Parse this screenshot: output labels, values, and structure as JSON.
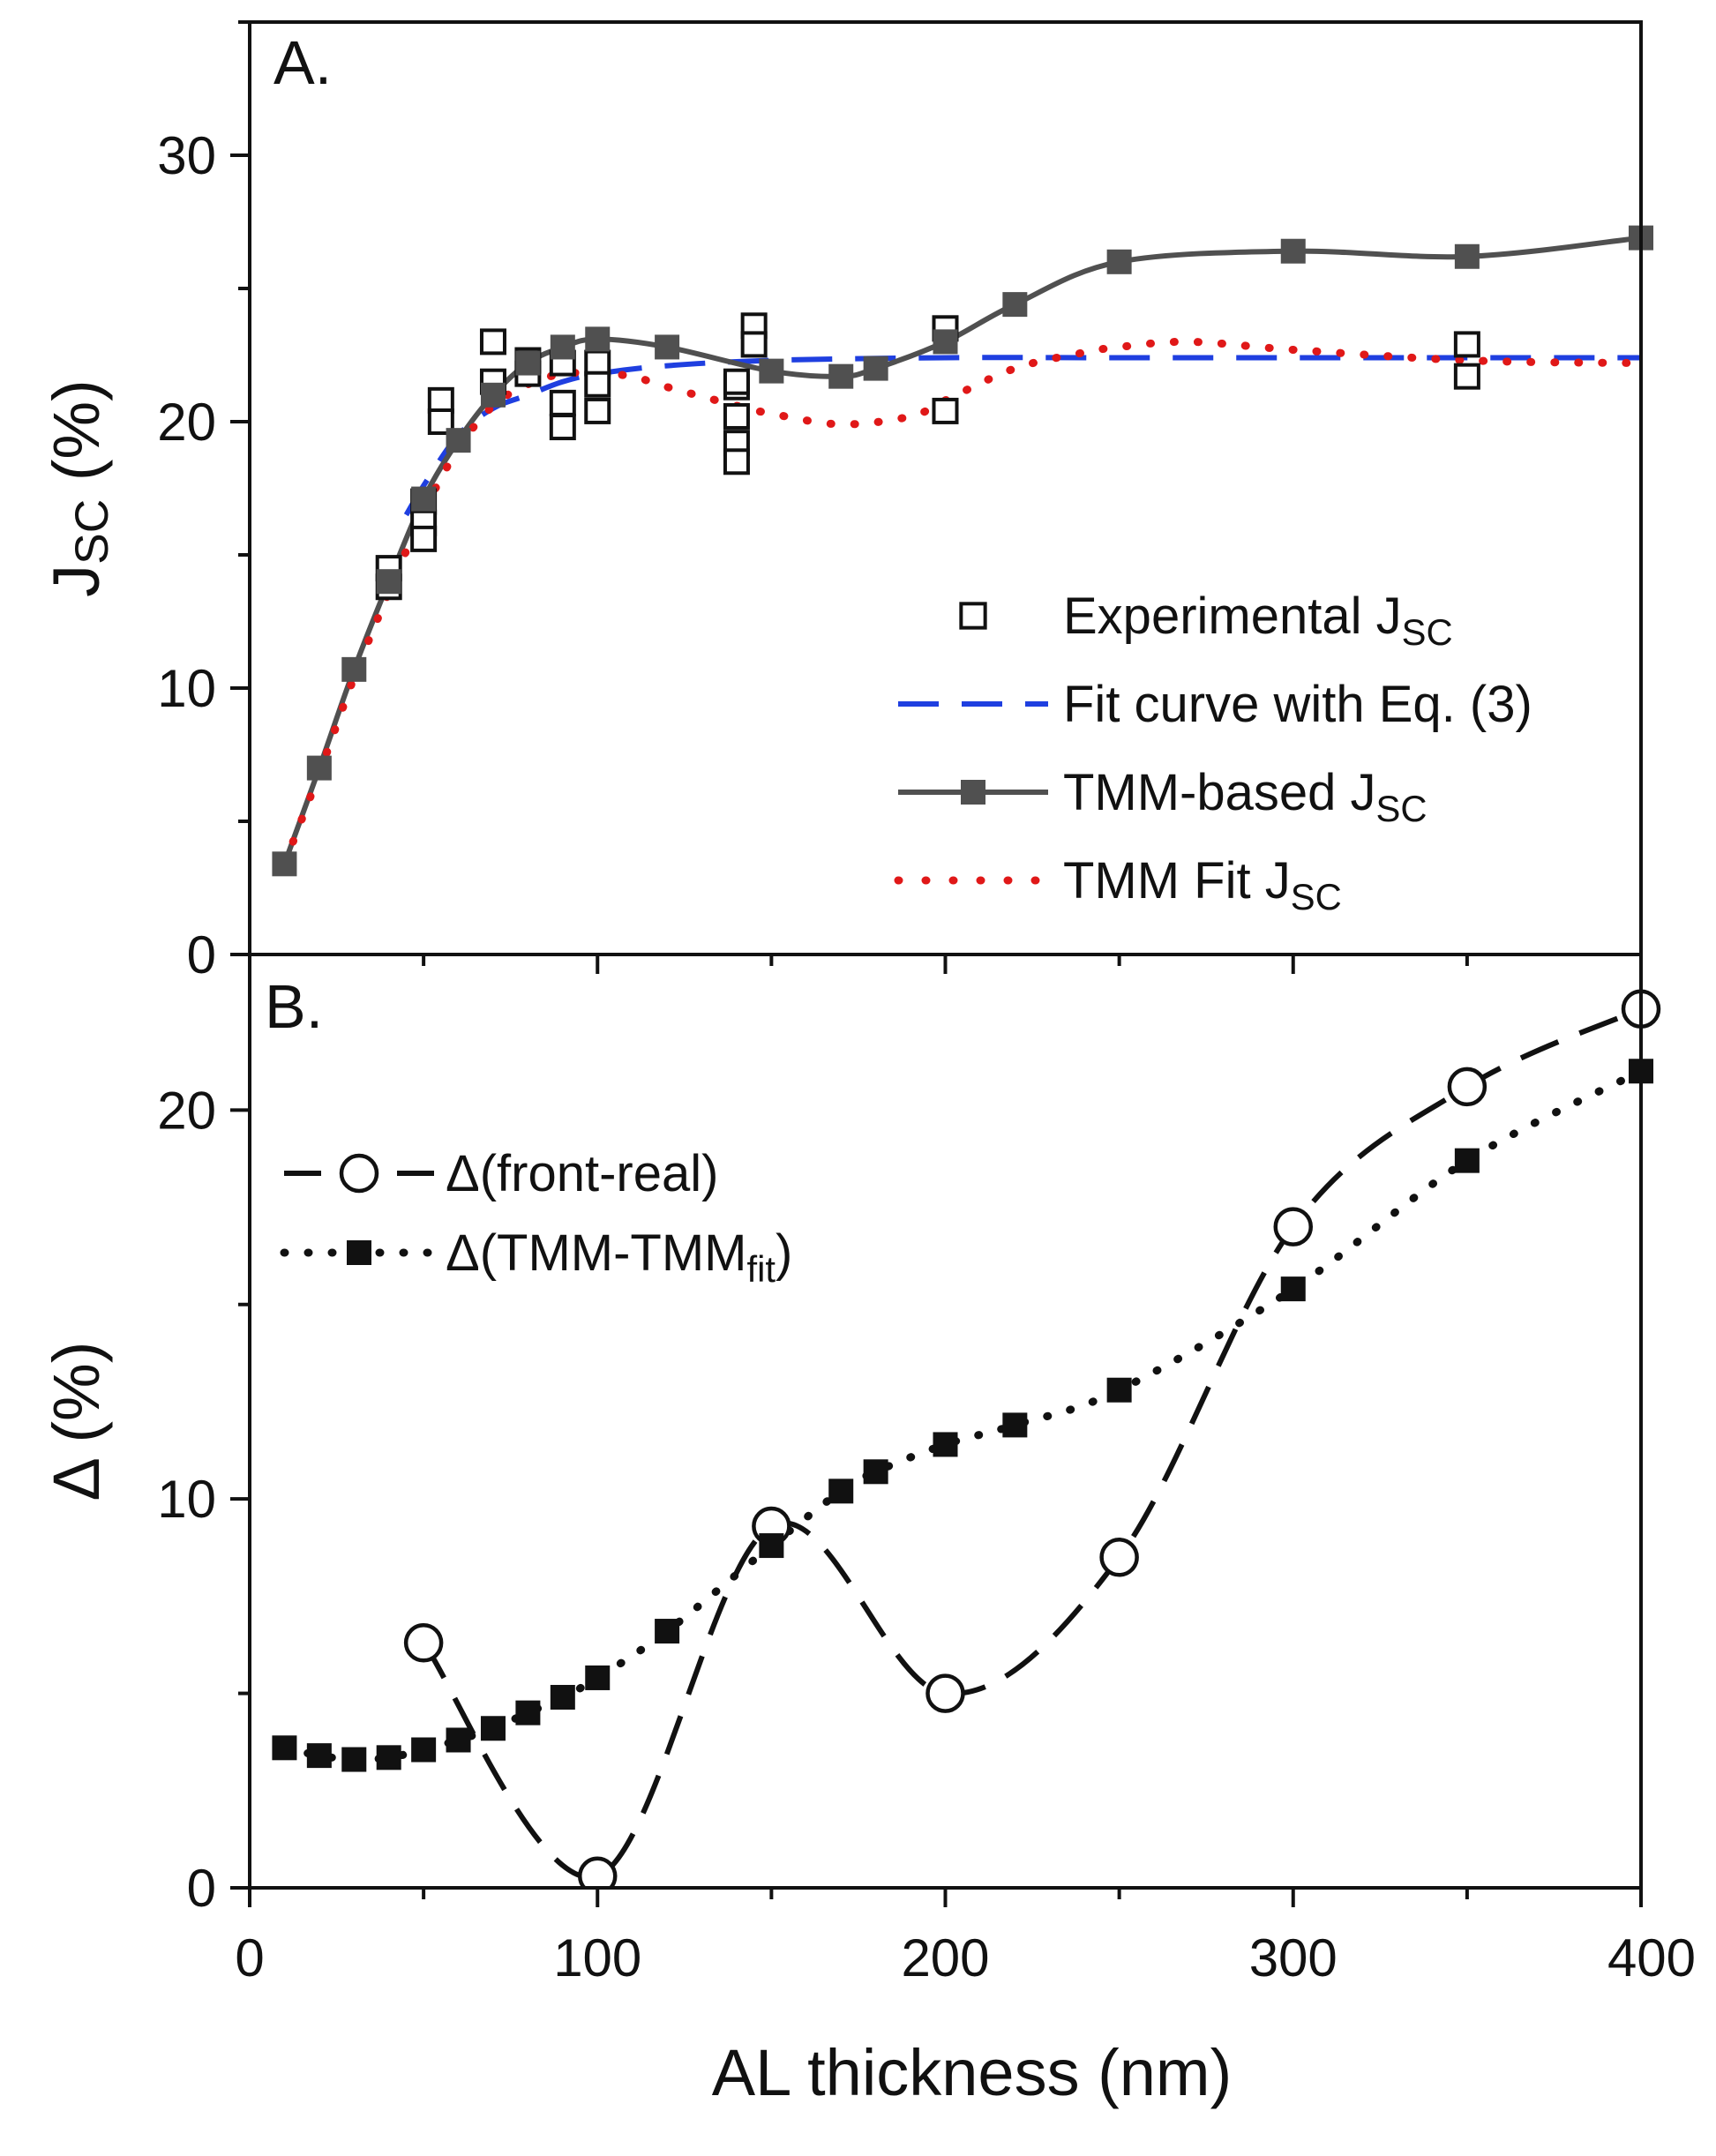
{
  "chart_data": [
    {
      "panel": "A.",
      "type": "line",
      "xlabel": "AL thickness (nm)",
      "ylabel": {
        "main": "J",
        "sub": "SC",
        "suffix": " (%)"
      },
      "xlim": [
        0,
        400
      ],
      "ylim": [
        0,
        35
      ],
      "xticks": [
        0,
        100,
        200,
        300,
        400
      ],
      "yticks": [
        0,
        10,
        20,
        30
      ],
      "legend_position": "bottom-right",
      "series": [
        {
          "name": "Experimental J",
          "name_sub": "SC",
          "marker": "open-square",
          "line": "none",
          "color": "#111111",
          "x": [
            40,
            40,
            50,
            50,
            50,
            55,
            55,
            70,
            70,
            80,
            80,
            90,
            90,
            90,
            100,
            100,
            100,
            140,
            140,
            140,
            140,
            140,
            145,
            145,
            200,
            200,
            350,
            350
          ],
          "y": [
            14.5,
            13.8,
            17.0,
            16.2,
            15.6,
            20.8,
            20.0,
            23.0,
            21.5,
            22.3,
            21.8,
            22.2,
            20.7,
            19.8,
            22.2,
            21.4,
            20.4,
            21.3,
            20.2,
            19.2,
            18.5,
            21.5,
            23.6,
            22.9,
            23.5,
            20.4,
            22.9,
            21.7
          ]
        },
        {
          "name": "Fit curve with Eq. (3)",
          "marker": "none",
          "line": "dashed",
          "color": "#1f3fe0",
          "x": [
            45,
            50,
            60,
            70,
            80,
            90,
            100,
            120,
            150,
            200,
            250,
            300,
            350,
            400
          ],
          "y": [
            16.5,
            17.6,
            19.5,
            20.5,
            21.0,
            21.5,
            21.8,
            22.1,
            22.3,
            22.4,
            22.4,
            22.4,
            22.4,
            22.4
          ]
        },
        {
          "name": "TMM-based J",
          "name_sub": "SC",
          "marker": "filled-square",
          "line": "solid",
          "color": "#505050",
          "x": [
            10,
            20,
            30,
            40,
            50,
            60,
            70,
            80,
            90,
            100,
            120,
            150,
            170,
            180,
            200,
            220,
            250,
            300,
            350,
            400
          ],
          "y": [
            3.4,
            7.0,
            10.7,
            14.0,
            17.1,
            19.3,
            21.0,
            22.2,
            22.8,
            23.1,
            22.8,
            21.9,
            21.7,
            22.0,
            23.0,
            24.4,
            26.0,
            26.4,
            26.2,
            26.9
          ]
        },
        {
          "name": "TMM Fit J",
          "name_sub": "SC",
          "marker": "none",
          "line": "dotted",
          "color": "#e01818",
          "x": [
            10,
            20,
            30,
            40,
            50,
            60,
            70,
            80,
            90,
            100,
            110,
            120,
            140,
            150,
            170,
            190,
            200,
            220,
            240,
            250,
            270,
            300,
            350,
            400
          ],
          "y": [
            3.4,
            6.8,
            10.4,
            13.6,
            16.6,
            19.0,
            20.6,
            21.4,
            21.8,
            21.8,
            21.7,
            21.3,
            20.6,
            20.3,
            19.9,
            20.2,
            20.8,
            22.0,
            22.6,
            22.8,
            23.0,
            22.7,
            22.3,
            22.2
          ]
        }
      ]
    },
    {
      "panel": "B.",
      "type": "line",
      "xlabel": "AL thickness (nm)",
      "ylabel": {
        "main": "Δ",
        "suffix": " (%)"
      },
      "xlim": [
        0,
        400
      ],
      "ylim": [
        0,
        24
      ],
      "xticks": [
        0,
        100,
        200,
        300,
        400
      ],
      "yticks": [
        0,
        10,
        20
      ],
      "legend_position": "top-left",
      "series": [
        {
          "name": "Δ(front-real)",
          "marker": "open-circle",
          "line": "dashed",
          "color": "#111111",
          "x": [
            50,
            100,
            150,
            200,
            250,
            300,
            350,
            400
          ],
          "y": [
            6.3,
            0.3,
            9.3,
            5.0,
            8.5,
            17.0,
            20.6,
            22.6
          ]
        },
        {
          "name": "Δ(TMM-TMM",
          "name_sub": "fit",
          "name_suffix": ")",
          "marker": "filled-square",
          "line": "dotted",
          "color": "#111111",
          "x": [
            10,
            20,
            30,
            40,
            50,
            60,
            70,
            80,
            90,
            100,
            120,
            150,
            170,
            180,
            200,
            220,
            250,
            300,
            350,
            400
          ],
          "y": [
            3.6,
            3.4,
            3.3,
            3.35,
            3.55,
            3.8,
            4.1,
            4.5,
            4.9,
            5.4,
            6.6,
            8.8,
            10.2,
            10.7,
            11.4,
            11.9,
            12.8,
            15.4,
            18.7,
            21.0
          ]
        }
      ]
    }
  ]
}
